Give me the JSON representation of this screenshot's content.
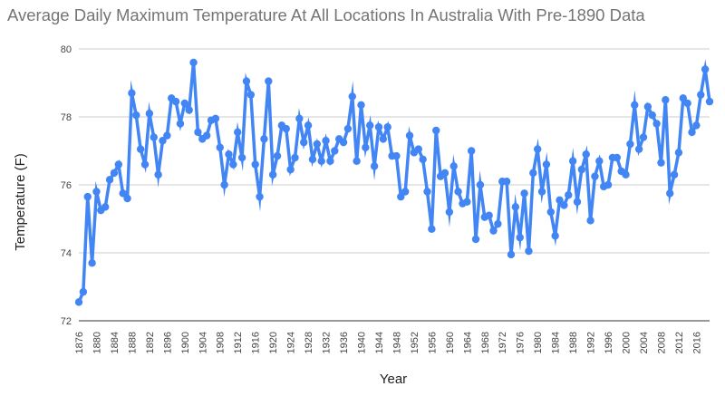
{
  "chart_data": {
    "type": "line",
    "title": "Average Daily Maximum Temperature At All Locations In Australia With Pre-1890 Data",
    "xlabel": "Year",
    "ylabel": "Temperature (F)",
    "xlim": [
      1876,
      2019
    ],
    "ylim": [
      72,
      80
    ],
    "y_ticks": [
      72,
      74,
      76,
      78,
      80
    ],
    "x_ticks": [
      1876,
      1880,
      1884,
      1888,
      1892,
      1896,
      1900,
      1904,
      1908,
      1912,
      1916,
      1920,
      1924,
      1928,
      1932,
      1936,
      1940,
      1944,
      1948,
      1952,
      1956,
      1960,
      1964,
      1968,
      1972,
      1976,
      1980,
      1984,
      1988,
      1992,
      1996,
      2000,
      2004,
      2008,
      2012,
      2016
    ],
    "grid": true,
    "legend": "none",
    "series_color": "#4285f4",
    "x": [
      1876,
      1877,
      1878,
      1879,
      1880,
      1881,
      1882,
      1883,
      1884,
      1885,
      1886,
      1887,
      1888,
      1889,
      1890,
      1891,
      1892,
      1893,
      1894,
      1895,
      1896,
      1897,
      1898,
      1899,
      1900,
      1901,
      1902,
      1903,
      1904,
      1905,
      1906,
      1907,
      1908,
      1909,
      1910,
      1911,
      1912,
      1913,
      1914,
      1915,
      1916,
      1917,
      1918,
      1919,
      1920,
      1921,
      1922,
      1923,
      1924,
      1925,
      1926,
      1927,
      1928,
      1929,
      1930,
      1931,
      1932,
      1933,
      1934,
      1935,
      1936,
      1937,
      1938,
      1939,
      1940,
      1941,
      1942,
      1943,
      1944,
      1945,
      1946,
      1947,
      1948,
      1949,
      1950,
      1951,
      1952,
      1953,
      1954,
      1955,
      1956,
      1957,
      1958,
      1959,
      1960,
      1961,
      1962,
      1963,
      1964,
      1965,
      1966,
      1967,
      1968,
      1969,
      1970,
      1971,
      1972,
      1973,
      1974,
      1975,
      1976,
      1977,
      1978,
      1979,
      1980,
      1981,
      1982,
      1983,
      1984,
      1985,
      1986,
      1987,
      1988,
      1989,
      1990,
      1991,
      1992,
      1993,
      1994,
      1995,
      1996,
      1997,
      1998,
      1999,
      2000,
      2001,
      2002,
      2003,
      2004,
      2005,
      2006,
      2007,
      2008,
      2009,
      2010,
      2011,
      2012,
      2013,
      2014,
      2015,
      2016,
      2017,
      2018,
      2019
    ],
    "values": [
      72.55,
      72.85,
      75.65,
      73.7,
      75.8,
      75.25,
      75.35,
      76.15,
      76.35,
      76.6,
      75.75,
      75.6,
      78.7,
      78.05,
      77.05,
      76.6,
      78.1,
      77.4,
      76.3,
      77.3,
      77.45,
      78.55,
      78.45,
      77.8,
      78.4,
      78.2,
      79.6,
      77.55,
      77.35,
      77.45,
      77.9,
      77.95,
      77.1,
      76.0,
      76.9,
      76.6,
      77.55,
      76.8,
      79.05,
      78.65,
      76.6,
      75.65,
      77.35,
      79.05,
      76.3,
      76.85,
      77.75,
      77.65,
      76.45,
      76.8,
      77.95,
      77.25,
      77.75,
      76.75,
      77.2,
      76.7,
      77.3,
      76.7,
      77.0,
      77.35,
      77.25,
      77.65,
      78.6,
      76.7,
      78.35,
      77.1,
      77.75,
      76.55,
      77.7,
      77.35,
      77.7,
      76.85,
      76.85,
      75.65,
      75.8,
      77.45,
      76.95,
      77.05,
      76.75,
      75.8,
      74.7,
      77.6,
      76.25,
      76.35,
      75.2,
      76.55,
      75.8,
      75.45,
      75.5,
      77.0,
      74.4,
      76.0,
      75.05,
      75.1,
      74.65,
      74.85,
      76.1,
      76.1,
      73.95,
      75.35,
      74.45,
      75.75,
      74.05,
      76.35,
      77.05,
      75.8,
      76.6,
      75.2,
      74.5,
      75.55,
      75.4,
      75.7,
      76.7,
      75.5,
      76.45,
      76.9,
      74.95,
      76.25,
      76.7,
      75.95,
      76.0,
      76.8,
      76.8,
      76.4,
      76.3,
      77.2,
      78.35,
      77.05,
      77.4,
      78.3,
      78.05,
      77.8,
      76.65,
      78.5,
      75.75,
      76.3,
      76.95,
      78.55,
      78.4,
      77.55,
      77.75,
      78.65,
      79.4,
      78.45
    ]
  }
}
